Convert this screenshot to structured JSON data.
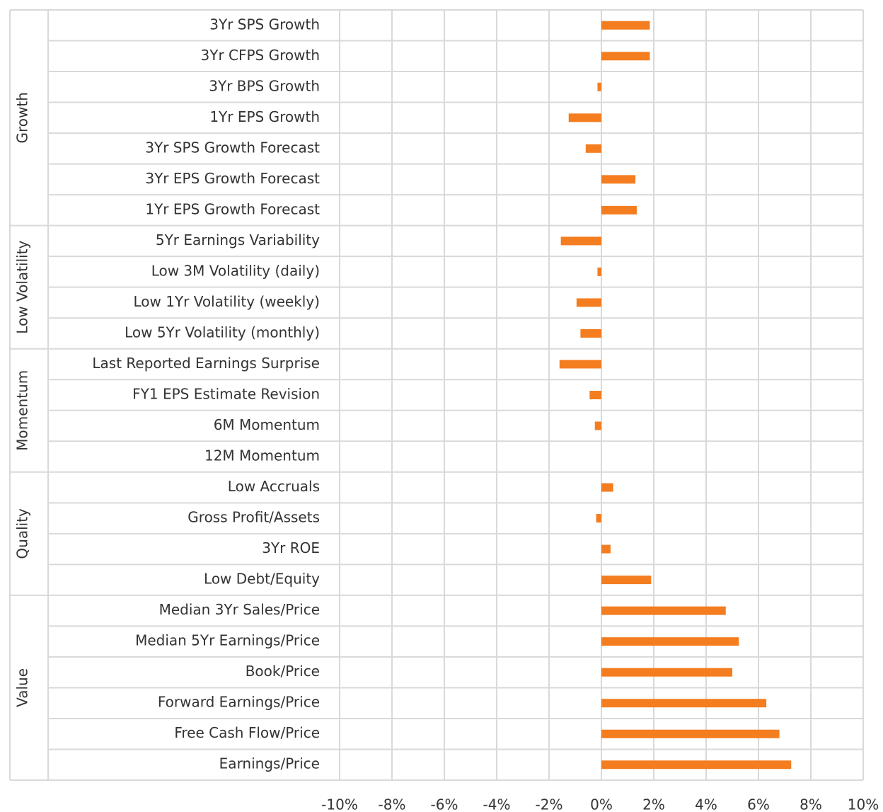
{
  "chart_data": {
    "type": "bar",
    "orientation": "horizontal",
    "color": "#f47d20",
    "groups": [
      {
        "name": "Growth",
        "categories": [
          "3Yr SPS Growth",
          "3Yr CFPS Growth",
          "3Yr BPS Growth",
          "1Yr EPS Growth",
          "3Yr SPS Growth Forecast",
          "3Yr EPS Growth Forecast",
          "1Yr EPS Growth Forecast"
        ],
        "values": [
          1.85,
          1.85,
          -0.15,
          -1.25,
          -0.6,
          1.3,
          1.35
        ]
      },
      {
        "name": "Low Volatility",
        "categories": [
          "5Yr Earnings Variability",
          "Low 3M Volatility (daily)",
          "Low 1Yr Volatility (weekly)",
          "Low 5Yr Volatility (monthly)"
        ],
        "values": [
          -1.55,
          -0.15,
          -0.95,
          -0.8
        ]
      },
      {
        "name": "Momentum",
        "categories": [
          "Last Reported Earnings Surprise",
          "FY1 EPS Estimate Revision",
          "6M Momentum",
          "12M Momentum"
        ],
        "values": [
          -1.6,
          -0.45,
          -0.25,
          0
        ]
      },
      {
        "name": "Quality",
        "categories": [
          "Low Accruals",
          "Gross Profit/Assets",
          "3Yr ROE",
          "Low Debt/Equity"
        ],
        "values": [
          0.45,
          -0.2,
          0.35,
          1.9
        ]
      },
      {
        "name": "Value",
        "categories": [
          "Median 3Yr Sales/Price",
          "Median 5Yr Earnings/Price",
          "Book/Price",
          "Forward Earnings/Price",
          "Free Cash Flow/Price",
          "Earnings/Price"
        ],
        "values": [
          4.75,
          5.25,
          5.0,
          6.3,
          6.8,
          7.25
        ]
      }
    ],
    "xlim": [
      -10,
      10
    ],
    "xticks": [
      {
        "value": -10,
        "label": "-10%"
      },
      {
        "value": -8,
        "label": "-8%"
      },
      {
        "value": -6,
        "label": "-6%"
      },
      {
        "value": -4,
        "label": "-4%"
      },
      {
        "value": -2,
        "label": "-2%"
      },
      {
        "value": 0,
        "label": "0%"
      },
      {
        "value": 2,
        "label": "2%"
      },
      {
        "value": 4,
        "label": "4%"
      },
      {
        "value": 6,
        "label": "6%"
      },
      {
        "value": 8,
        "label": "8%"
      },
      {
        "value": 10,
        "label": "10%"
      }
    ],
    "grid": true
  }
}
